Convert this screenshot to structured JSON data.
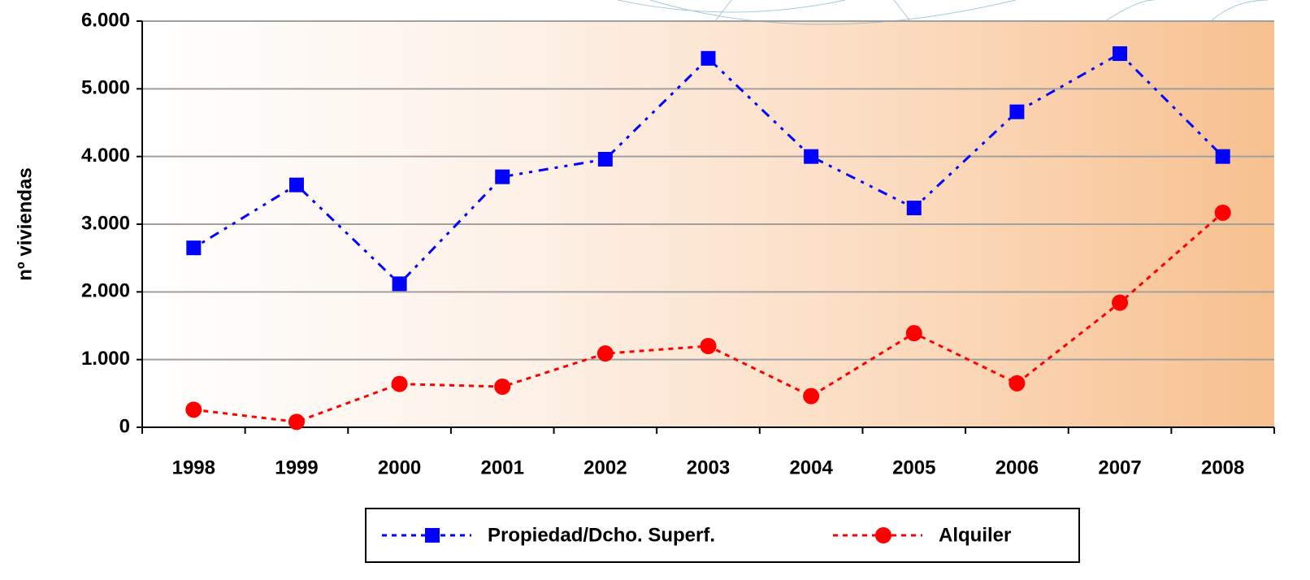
{
  "chart_data": {
    "type": "line",
    "y_label": "nº viviendas",
    "categories": [
      "1998",
      "1999",
      "2000",
      "2001",
      "2002",
      "2003",
      "2004",
      "2005",
      "2006",
      "2007",
      "2008"
    ],
    "series": [
      {
        "name": "Propiedad/Dcho. Superf.",
        "color": "#0000ff",
        "marker": "square",
        "values": [
          2650,
          3580,
          2120,
          3700,
          3960,
          5450,
          4000,
          3240,
          4660,
          5520,
          4000
        ]
      },
      {
        "name": "Alquiler",
        "color": "#ff0000",
        "marker": "circle",
        "values": [
          260,
          80,
          640,
          600,
          1090,
          1200,
          460,
          1390,
          650,
          1840,
          3170
        ]
      }
    ],
    "ylim": [
      0,
      6000
    ],
    "yticks": [
      0,
      {
        "value": 1000,
        "label": "1.000"
      },
      {
        "value": 2000,
        "label": "2.000"
      },
      {
        "value": 3000,
        "label": "3.000"
      },
      {
        "value": 4000,
        "label": "4.000"
      },
      {
        "value": 5000,
        "label": "5.000"
      },
      {
        "value": 6000,
        "label": "6.000"
      }
    ],
    "grid": true,
    "legend": "bottom"
  }
}
